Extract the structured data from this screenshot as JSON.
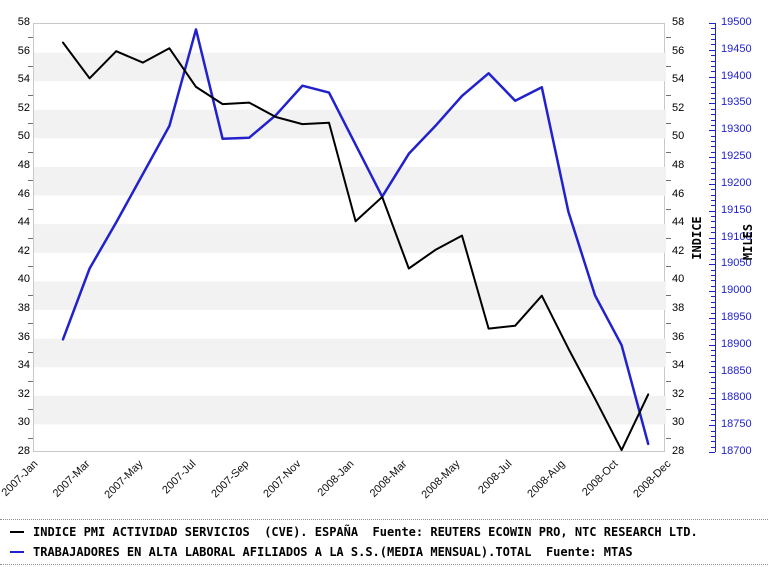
{
  "chart_data": {
    "type": "line",
    "title": "",
    "grid": "horizontal-bands",
    "legend_position": "bottom",
    "x_tick_labels": [
      "2007-Jan",
      "2007-Mar",
      "2007-May",
      "2007-Jul",
      "2007-Sep",
      "2007-Nov",
      "2008-Jan",
      "2008-Mar",
      "2008-May",
      "2008-Jul",
      "2008-Aug",
      "2008-Oct",
      "2008-Dec"
    ],
    "months": [
      "2007-Feb",
      "2007-Mar",
      "2007-Apr",
      "2007-May",
      "2007-Jun",
      "2007-Jul",
      "2007-Aug",
      "2007-Sep",
      "2007-Oct",
      "2007-Nov",
      "2007-Dec",
      "2008-Jan",
      "2008-Feb",
      "2008-Mar",
      "2008-Apr",
      "2008-May",
      "2008-Jun",
      "2008-Jul",
      "2008-Aug",
      "2008-Sep",
      "2008-Oct",
      "2008-Nov",
      "2008-Dec"
    ],
    "series": [
      {
        "name": "INDICE PMI ACTIVIDAD SERVICIOS (CVE). ESPAÑA",
        "source": "REUTERS ECOWIN PRO, NTC RESEARCH LTD.",
        "axis": "index",
        "color": "#000000",
        "values": [
          56.7,
          54.2,
          56.1,
          55.3,
          56.3,
          53.6,
          52.4,
          52.5,
          51.5,
          51.0,
          51.1,
          44.2,
          45.9,
          40.9,
          42.2,
          43.2,
          36.7,
          36.9,
          39.0,
          35.3,
          31.8,
          28.2,
          32.1
        ]
      },
      {
        "name": "TRABAJADORES EN ALTA LABORAL AFILIADOS A LA S.S.(MEDIA MENSUAL).TOTAL",
        "source": "MTAS",
        "axis": "miles",
        "color": "#2222cc",
        "values": [
          18912,
          19044,
          19130,
          19220,
          19310,
          19490,
          19286,
          19288,
          19330,
          19385,
          19372,
          19275,
          19178,
          19258,
          19310,
          19366,
          19408,
          19357,
          19382,
          19150,
          18994,
          18901,
          18717
        ]
      }
    ],
    "axes": {
      "left_index": {
        "min": 28,
        "max": 58,
        "step": 2,
        "title": "",
        "tick_labels": [
          58,
          56,
          54,
          52,
          50,
          48,
          46,
          44,
          42,
          40,
          38,
          36,
          34,
          32,
          30,
          28
        ]
      },
      "right_index": {
        "min": 28,
        "max": 58,
        "step": 2,
        "title": "INDICE",
        "tick_labels": [
          58,
          56,
          54,
          52,
          50,
          48,
          46,
          44,
          42,
          40,
          38,
          36,
          34,
          32,
          30,
          28
        ]
      },
      "right_miles": {
        "min": 18700,
        "max": 19500,
        "step": 50,
        "title": "MILES",
        "tick_labels": [
          19500,
          19450,
          19400,
          19350,
          19300,
          19250,
          19200,
          19150,
          19100,
          19050,
          19000,
          18950,
          18900,
          18850,
          18800,
          18750,
          18700
        ]
      }
    }
  },
  "legend": {
    "rows": [
      {
        "text": "INDICE PMI ACTIVIDAD SERVICIOS  (CVE). ESPAÑA  Fuente: REUTERS ECOWIN PRO, NTC RESEARCH LTD.",
        "color": "#000000"
      },
      {
        "text": "TRABAJADORES EN ALTA LABORAL AFILIADOS A LA S.S.(MEDIA MENSUAL).TOTAL  Fuente: MTAS",
        "color": "#2222cc"
      }
    ]
  },
  "colors": {
    "pmi_line": "#000000",
    "afiliados_line": "#2222cc",
    "band": "#f2f2f2",
    "plot_border": "#c8c8c8",
    "tick": "#707070",
    "blue_axis": "#2222cc"
  }
}
